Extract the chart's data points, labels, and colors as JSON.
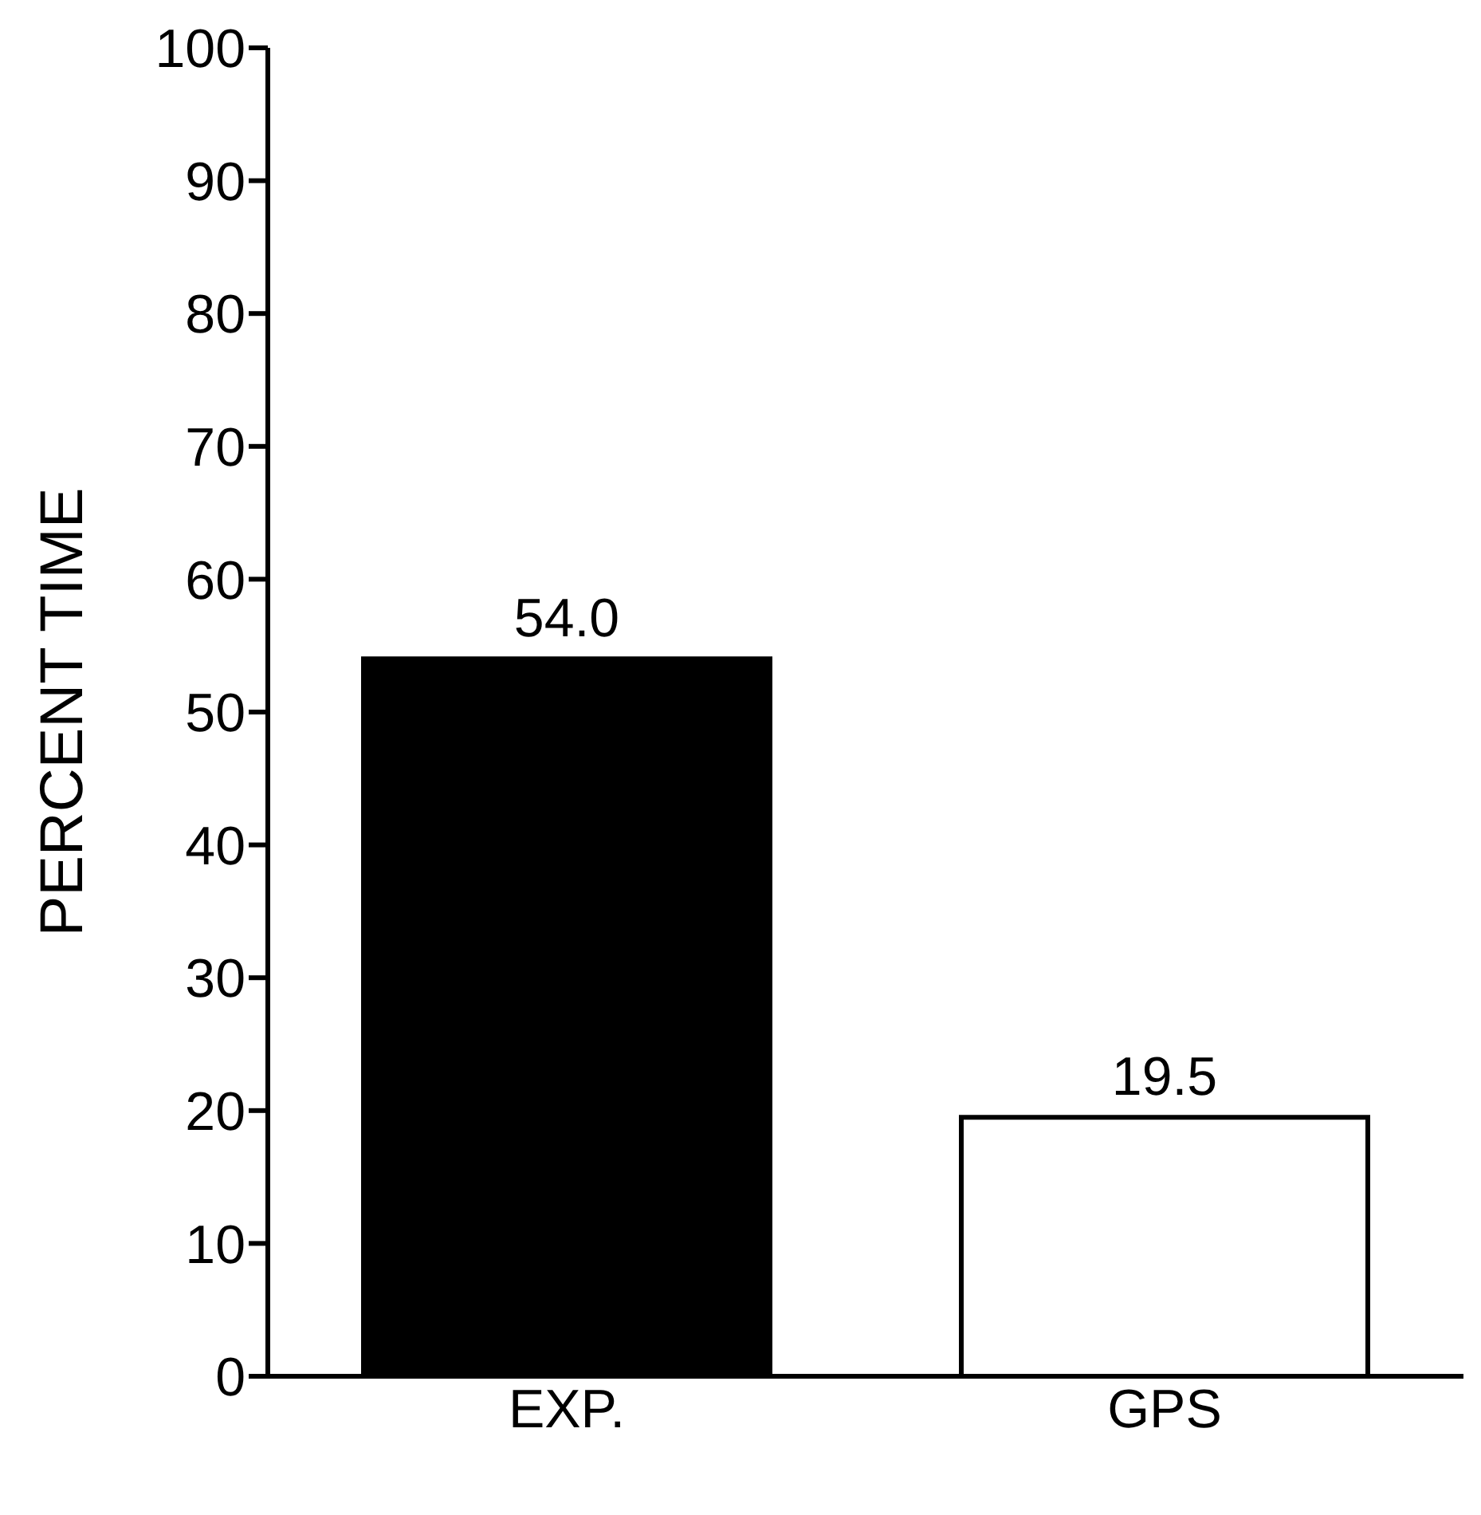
{
  "chart_data": {
    "type": "bar",
    "ylabel": "PERCENT TIME",
    "categories": [
      "EXP.",
      "GPS"
    ],
    "values": [
      54.0,
      19.5
    ],
    "colors": [
      "#000000",
      "#ffffff"
    ],
    "value_labels": [
      "54.0",
      "19.5"
    ],
    "ylim": [
      0,
      100
    ],
    "yticks": [
      0,
      10,
      20,
      30,
      40,
      50,
      60,
      70,
      80,
      90,
      100
    ],
    "grid": false,
    "legend": false
  }
}
